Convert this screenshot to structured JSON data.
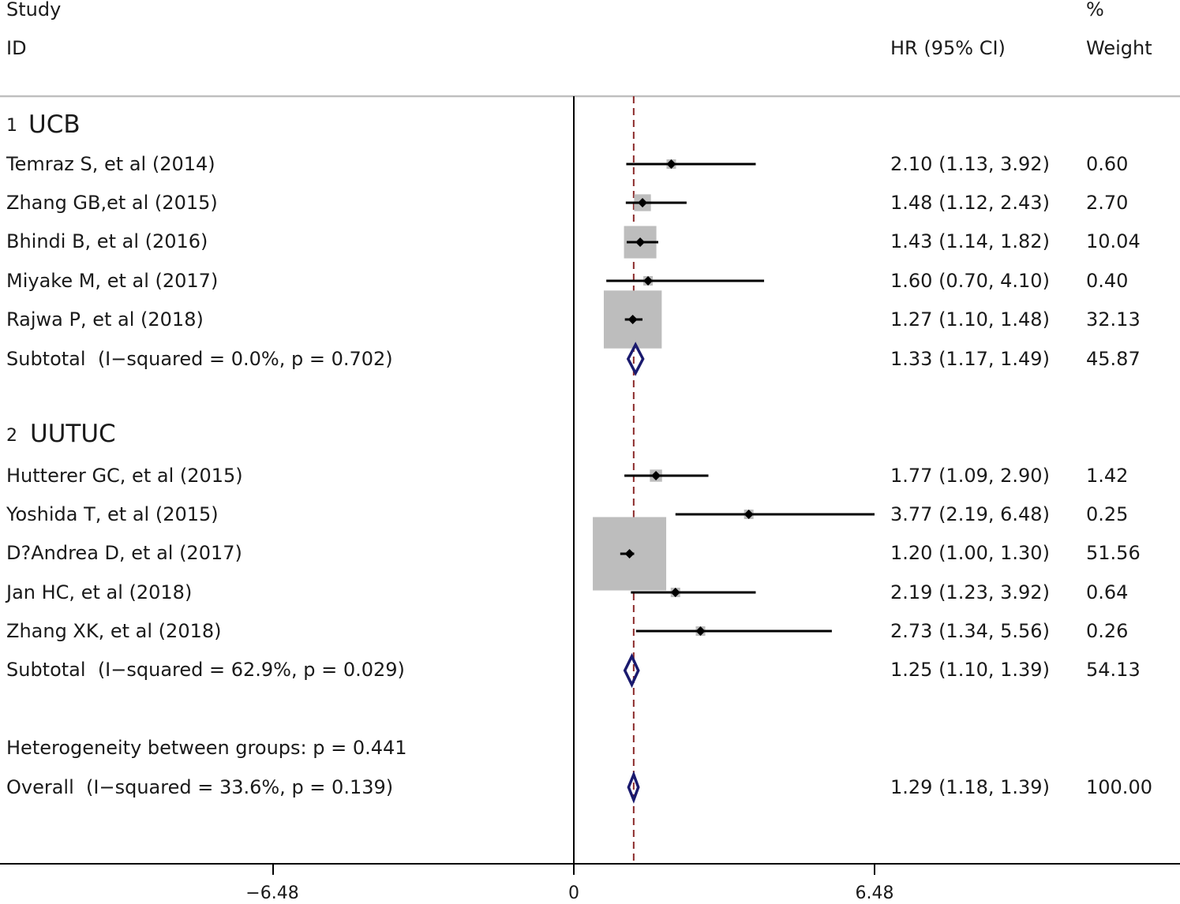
{
  "chart_data": {
    "type": "forest",
    "x_axis": {
      "ticks": [
        -6.48,
        0,
        6.48
      ],
      "tick_labels": [
        "−6.48",
        "0",
        "6.48"
      ],
      "null_line": 0,
      "overall_line": 1.29
    },
    "headers": {
      "study_line1": "Study",
      "study_line2": "ID",
      "hr": "HR (95% CI)",
      "weight_line1": "%",
      "weight_line2": "Weight"
    },
    "groups": [
      {
        "num": "1",
        "name": "UCB",
        "studies": [
          {
            "label": "Temraz S, et al (2014)",
            "hr": 2.1,
            "lo": 1.13,
            "hi": 3.92,
            "hr_text": "2.10 (1.13, 3.92)",
            "weight": 0.6,
            "weight_text": "0.60"
          },
          {
            "label": "Zhang GB,et al (2015)",
            "hr": 1.48,
            "lo": 1.12,
            "hi": 2.43,
            "hr_text": "1.48 (1.12, 2.43)",
            "weight": 2.7,
            "weight_text": "2.70"
          },
          {
            "label": "Bhindi B, et al (2016)",
            "hr": 1.43,
            "lo": 1.14,
            "hi": 1.82,
            "hr_text": "1.43 (1.14, 1.82)",
            "weight": 10.04,
            "weight_text": "10.04"
          },
          {
            "label": "Miyake M, et al (2017)",
            "hr": 1.6,
            "lo": 0.7,
            "hi": 4.1,
            "hr_text": "1.60 (0.70, 4.10)",
            "weight": 0.4,
            "weight_text": "0.40"
          },
          {
            "label": "Rajwa P, et al (2018)",
            "hr": 1.27,
            "lo": 1.1,
            "hi": 1.48,
            "hr_text": "1.27 (1.10, 1.48)",
            "weight": 32.13,
            "weight_text": "32.13"
          }
        ],
        "subtotal": {
          "label": "Subtotal  (I−squared = 0.0%, p = 0.702)",
          "hr": 1.33,
          "lo": 1.17,
          "hi": 1.49,
          "hr_text": "1.33 (1.17, 1.49)",
          "weight_text": "45.87"
        }
      },
      {
        "num": "2",
        "name": "UUTUC",
        "studies": [
          {
            "label": "Hutterer GC, et al (2015)",
            "hr": 1.77,
            "lo": 1.09,
            "hi": 2.9,
            "hr_text": "1.77 (1.09, 2.90)",
            "weight": 1.42,
            "weight_text": "1.42"
          },
          {
            "label": "Yoshida T, et al (2015)",
            "hr": 3.77,
            "lo": 2.19,
            "hi": 6.48,
            "hr_text": "3.77 (2.19, 6.48)",
            "weight": 0.25,
            "weight_text": "0.25"
          },
          {
            "label": "D?Andrea D, et al (2017)",
            "hr": 1.2,
            "lo": 1.0,
            "hi": 1.3,
            "hr_text": "1.20 (1.00, 1.30)",
            "weight": 51.56,
            "weight_text": "51.56"
          },
          {
            "label": "Jan HC, et al (2018)",
            "hr": 2.19,
            "lo": 1.23,
            "hi": 3.92,
            "hr_text": "2.19 (1.23, 3.92)",
            "weight": 0.64,
            "weight_text": "0.64"
          },
          {
            "label": "Zhang XK, et al (2018)",
            "hr": 2.73,
            "lo": 1.34,
            "hi": 5.56,
            "hr_text": "2.73 (1.34, 5.56)",
            "weight": 0.26,
            "weight_text": "0.26"
          }
        ],
        "subtotal": {
          "label": "Subtotal  (I−squared = 62.9%, p = 0.029)",
          "hr": 1.25,
          "lo": 1.1,
          "hi": 1.39,
          "hr_text": "1.25 (1.10, 1.39)",
          "weight_text": "54.13"
        }
      }
    ],
    "heterogeneity": "Heterogeneity between groups: p = 0.441",
    "overall": {
      "label": "Overall  (I−squared = 33.6%, p = 0.139)",
      "hr": 1.29,
      "lo": 1.18,
      "hi": 1.39,
      "hr_text": "1.29 (1.18, 1.39)",
      "weight_text": "100.00"
    },
    "colors": {
      "line": "#000000",
      "box": "#bdbdbd",
      "diamond": "#1a1a6e",
      "overall_line": "#8b2a2a",
      "rule": "#bfbfbf"
    }
  }
}
